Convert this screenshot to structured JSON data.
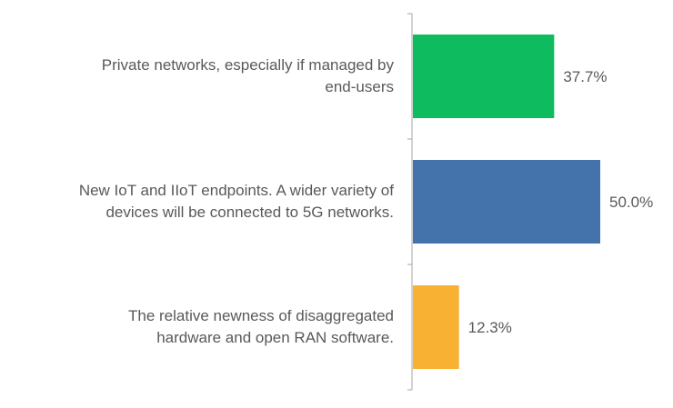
{
  "chart_data": {
    "type": "bar",
    "orientation": "horizontal",
    "categories": [
      [
        "Private networks, especially if managed by",
        "end-users"
      ],
      [
        "New IoT and IIoT endpoints. A wider variety of",
        "devices will be connected to 5G networks."
      ],
      [
        "The relative newness of disaggregated",
        "hardware and open RAN software."
      ]
    ],
    "values": [
      37.7,
      50.0,
      12.3
    ],
    "value_labels": [
      "37.7%",
      "50.0%",
      "12.3%"
    ],
    "colors": [
      "#0EBB5F",
      "#4472AA",
      "#F8B133"
    ],
    "xlim": [
      0,
      50
    ],
    "grid": false,
    "legend": "none"
  }
}
